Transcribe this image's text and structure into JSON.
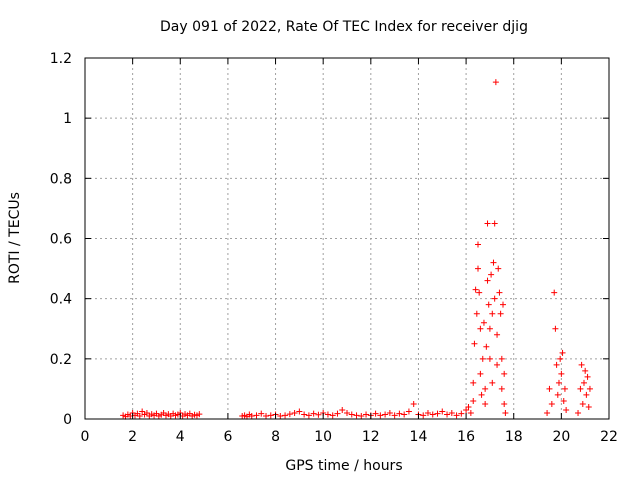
{
  "chart_data": {
    "type": "scatter",
    "title": "Day 091 of 2022, Rate Of TEC Index for receiver djig",
    "xlabel": "GPS time / hours",
    "ylabel": "ROTI / TECUs",
    "xlim": [
      0,
      22
    ],
    "ylim": [
      0,
      1.2
    ],
    "xticks": [
      0,
      2,
      4,
      6,
      8,
      10,
      12,
      14,
      16,
      18,
      20,
      22
    ],
    "xtick_labels": [
      "0",
      "2",
      "4",
      "6",
      "8",
      "10",
      "12",
      "14",
      "16",
      "18",
      "20",
      "22"
    ],
    "yticks": [
      0,
      0.2,
      0.4,
      0.6,
      0.8,
      1.0,
      1.2
    ],
    "ytick_labels": [
      "0",
      "0.2",
      "0.4",
      "0.6",
      "0.8",
      "1",
      "1.2"
    ],
    "grid": true,
    "marker": "plus",
    "marker_color": "#ff0000",
    "series": [
      {
        "points": [
          [
            1.6,
            0.012
          ],
          [
            1.7,
            0.008
          ],
          [
            1.8,
            0.015
          ],
          [
            1.9,
            0.01
          ],
          [
            2.0,
            0.02
          ],
          [
            2.1,
            0.012
          ],
          [
            2.2,
            0.018
          ],
          [
            2.3,
            0.01
          ],
          [
            2.4,
            0.025
          ],
          [
            2.5,
            0.015
          ],
          [
            2.6,
            0.02
          ],
          [
            2.7,
            0.01
          ],
          [
            2.8,
            0.016
          ],
          [
            2.9,
            0.012
          ],
          [
            3.0,
            0.018
          ],
          [
            3.1,
            0.01
          ],
          [
            3.2,
            0.014
          ],
          [
            3.3,
            0.02
          ],
          [
            3.4,
            0.012
          ],
          [
            3.5,
            0.016
          ],
          [
            3.6,
            0.01
          ],
          [
            3.7,
            0.018
          ],
          [
            3.8,
            0.012
          ],
          [
            3.9,
            0.015
          ],
          [
            4.0,
            0.02
          ],
          [
            4.1,
            0.01
          ],
          [
            4.2,
            0.016
          ],
          [
            4.3,
            0.012
          ],
          [
            4.4,
            0.018
          ],
          [
            4.5,
            0.01
          ],
          [
            4.6,
            0.014
          ],
          [
            4.7,
            0.012
          ],
          [
            4.8,
            0.016
          ],
          [
            6.6,
            0.01
          ],
          [
            6.7,
            0.012
          ],
          [
            6.8,
            0.008
          ],
          [
            6.9,
            0.015
          ],
          [
            7.0,
            0.01
          ],
          [
            7.2,
            0.012
          ],
          [
            7.4,
            0.018
          ],
          [
            7.6,
            0.01
          ],
          [
            7.8,
            0.012
          ],
          [
            8.0,
            0.015
          ],
          [
            8.2,
            0.01
          ],
          [
            8.4,
            0.012
          ],
          [
            8.6,
            0.016
          ],
          [
            8.8,
            0.02
          ],
          [
            9.0,
            0.025
          ],
          [
            9.2,
            0.015
          ],
          [
            9.4,
            0.012
          ],
          [
            9.6,
            0.018
          ],
          [
            9.8,
            0.014
          ],
          [
            10.0,
            0.02
          ],
          [
            10.2,
            0.015
          ],
          [
            10.4,
            0.012
          ],
          [
            10.6,
            0.018
          ],
          [
            10.8,
            0.03
          ],
          [
            11.0,
            0.02
          ],
          [
            11.2,
            0.015
          ],
          [
            11.4,
            0.012
          ],
          [
            11.6,
            0.01
          ],
          [
            11.8,
            0.015
          ],
          [
            12.0,
            0.012
          ],
          [
            12.2,
            0.018
          ],
          [
            12.4,
            0.012
          ],
          [
            12.6,
            0.015
          ],
          [
            12.8,
            0.02
          ],
          [
            13.0,
            0.012
          ],
          [
            13.2,
            0.018
          ],
          [
            13.4,
            0.015
          ],
          [
            13.6,
            0.025
          ],
          [
            13.8,
            0.05
          ],
          [
            14.0,
            0.015
          ],
          [
            14.2,
            0.012
          ],
          [
            14.4,
            0.02
          ],
          [
            14.6,
            0.015
          ],
          [
            14.8,
            0.018
          ],
          [
            15.0,
            0.025
          ],
          [
            15.2,
            0.015
          ],
          [
            15.4,
            0.02
          ],
          [
            15.6,
            0.012
          ],
          [
            15.8,
            0.018
          ],
          [
            16.0,
            0.03
          ],
          [
            16.1,
            0.04
          ],
          [
            16.2,
            0.02
          ],
          [
            16.3,
            0.06
          ],
          [
            16.3,
            0.12
          ],
          [
            16.35,
            0.25
          ],
          [
            16.4,
            0.43
          ],
          [
            16.45,
            0.35
          ],
          [
            16.5,
            0.58
          ],
          [
            16.5,
            0.5
          ],
          [
            16.55,
            0.42
          ],
          [
            16.6,
            0.3
          ],
          [
            16.6,
            0.15
          ],
          [
            16.65,
            0.08
          ],
          [
            16.7,
            0.2
          ],
          [
            16.75,
            0.32
          ],
          [
            16.8,
            0.1
          ],
          [
            16.8,
            0.05
          ],
          [
            16.85,
            0.24
          ],
          [
            16.9,
            0.46
          ],
          [
            16.9,
            0.65
          ],
          [
            16.95,
            0.38
          ],
          [
            17.0,
            0.3
          ],
          [
            17.0,
            0.2
          ],
          [
            17.05,
            0.48
          ],
          [
            17.1,
            0.35
          ],
          [
            17.1,
            0.12
          ],
          [
            17.15,
            0.52
          ],
          [
            17.2,
            0.65
          ],
          [
            17.2,
            0.4
          ],
          [
            17.25,
            1.12
          ],
          [
            17.3,
            0.28
          ],
          [
            17.3,
            0.18
          ],
          [
            17.35,
            0.5
          ],
          [
            17.4,
            0.42
          ],
          [
            17.45,
            0.35
          ],
          [
            17.5,
            0.2
          ],
          [
            17.5,
            0.1
          ],
          [
            17.55,
            0.38
          ],
          [
            17.6,
            0.15
          ],
          [
            17.6,
            0.05
          ],
          [
            17.65,
            0.02
          ],
          [
            19.4,
            0.02
          ],
          [
            19.5,
            0.1
          ],
          [
            19.6,
            0.05
          ],
          [
            19.7,
            0.42
          ],
          [
            19.75,
            0.3
          ],
          [
            19.8,
            0.18
          ],
          [
            19.85,
            0.08
          ],
          [
            19.9,
            0.12
          ],
          [
            19.95,
            0.2
          ],
          [
            20.0,
            0.15
          ],
          [
            20.05,
            0.22
          ],
          [
            20.1,
            0.06
          ],
          [
            20.15,
            0.1
          ],
          [
            20.2,
            0.03
          ],
          [
            20.7,
            0.02
          ],
          [
            20.8,
            0.1
          ],
          [
            20.85,
            0.18
          ],
          [
            20.9,
            0.05
          ],
          [
            20.95,
            0.12
          ],
          [
            21.0,
            0.16
          ],
          [
            21.05,
            0.08
          ],
          [
            21.1,
            0.14
          ],
          [
            21.15,
            0.04
          ],
          [
            21.2,
            0.1
          ]
        ]
      }
    ]
  }
}
